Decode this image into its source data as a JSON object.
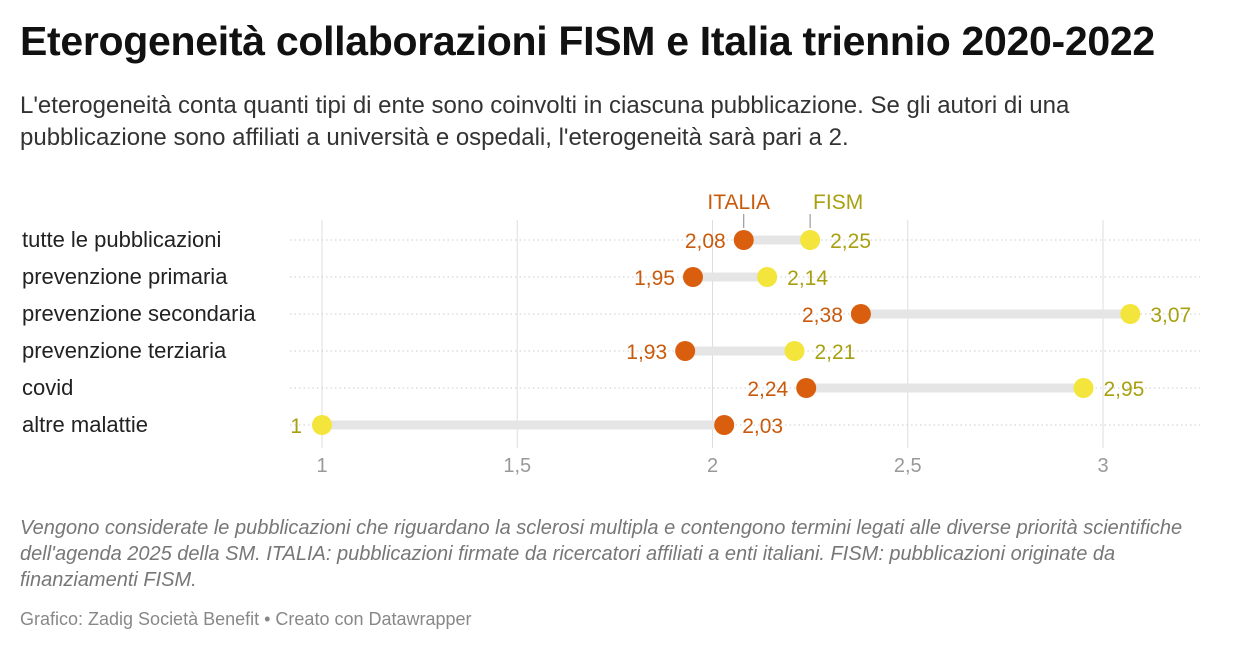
{
  "title": "Eterogeneità collaborazioni FISM e Italia triennio 2020-2022",
  "subtitle": "L'eterogeneità conta quanti tipi di ente sono coinvolti in ciascuna pubblicazione. Se gli autori di una pubblicazione sono affiliati a università e ospedali, l'eterogeneità sarà pari a 2.",
  "notes": "Vengono considerate le pubblicazioni che riguardano la sclerosi multipla e contengono termini legati alle diverse priorità scientifiche dell'agenda 2025 della SM. ITALIA: pubblicazioni firmate da ricercatori affiliati a enti italiani. FISM: pubblicazioni originate da finanziamenti FISM.",
  "footer": "Grafico: Zadig Società Benefit • Creato con Datawrapper",
  "colors": {
    "italia": "#d95f0e",
    "italia_label": "#c95a0c",
    "fism": "#f3e53b",
    "fism_label": "#a8a010",
    "range_bar": "#e5e5e5",
    "grid": "#dddddd",
    "tick_label": "#999999"
  },
  "chart_data": {
    "type": "range-dot",
    "categories": [
      "tutte le pubblicazioni",
      "prevenzione primaria",
      "prevenzione secondaria",
      "prevenzione terziaria",
      "covid",
      "altre malattie"
    ],
    "series": [
      {
        "name": "ITALIA",
        "values": [
          2.08,
          1.95,
          2.38,
          1.93,
          2.24,
          2.03
        ],
        "labels": [
          "2,08",
          "1,95",
          "2,38",
          "1,93",
          "2,24",
          "2,03"
        ]
      },
      {
        "name": "FISM",
        "values": [
          2.25,
          2.14,
          3.07,
          2.21,
          2.95,
          1.0
        ],
        "labels": [
          "2,25",
          "2,14",
          "3,07",
          "2,21",
          "2,95",
          "1"
        ]
      }
    ],
    "xlim": [
      1,
      3.15
    ],
    "xticks": [
      1,
      1.5,
      2,
      2.5,
      3
    ],
    "xtick_labels": [
      "1",
      "1,5",
      "2",
      "2,5",
      "3"
    ],
    "grid": true
  }
}
